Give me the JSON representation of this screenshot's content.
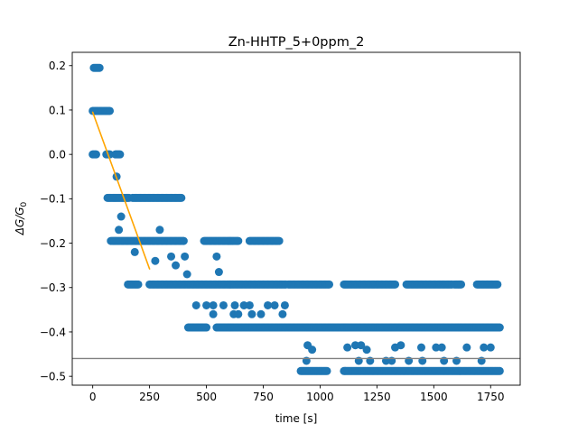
{
  "chart_data": {
    "type": "scatter",
    "title": "Zn-HHTP_5+0ppm_2",
    "xlabel": "time [s]",
    "ylabel_prefix": "ΔG/G",
    "ylabel_sub": "0",
    "xlim": [
      -90,
      1880
    ],
    "ylim": [
      -0.52,
      0.23
    ],
    "xticks": [
      0,
      250,
      500,
      750,
      1000,
      1250,
      1500,
      1750
    ],
    "xtick_labels": [
      "0",
      "250",
      "500",
      "750",
      "1000",
      "1250",
      "1500",
      "1750"
    ],
    "yticks": [
      0.2,
      0.1,
      0.0,
      -0.1,
      -0.2,
      -0.3,
      -0.4,
      -0.5
    ],
    "ytick_labels": [
      "0.2",
      "0.1",
      "0.0",
      "−0.1",
      "−0.2",
      "−0.3",
      "−0.4",
      "−0.5"
    ],
    "grid": false,
    "colors": {
      "points": "#1f77b4",
      "fit_line": "#ffa500",
      "ref_line": "#808080"
    },
    "fit_line": {
      "x": [
        0,
        250
      ],
      "y": [
        0.095,
        -0.258
      ]
    },
    "reference_line": {
      "y": -0.46
    },
    "series": [
      {
        "marker": "circle",
        "segments": [
          {
            "y": 0.195,
            "x0": 5,
            "x1": 30,
            "step": 5
          },
          {
            "y": 0.098,
            "x0": 0,
            "x1": 75,
            "step": 5
          },
          {
            "y": 0.0,
            "x0": 0,
            "x1": 15,
            "step": 5
          },
          {
            "y": 0.0,
            "x0": 60,
            "x1": 75,
            "step": 5
          },
          {
            "y": 0.0,
            "x0": 100,
            "x1": 120,
            "step": 5
          },
          {
            "y": -0.098,
            "x0": 65,
            "x1": 160,
            "step": 5
          },
          {
            "y": -0.098,
            "x0": 175,
            "x1": 250,
            "step": 5
          },
          {
            "y": -0.098,
            "x0": 255,
            "x1": 390,
            "step": 5
          },
          {
            "y": -0.195,
            "x0": 80,
            "x1": 400,
            "step": 5
          },
          {
            "y": -0.195,
            "x0": 490,
            "x1": 640,
            "step": 5
          },
          {
            "y": -0.195,
            "x0": 690,
            "x1": 820,
            "step": 5
          },
          {
            "y": -0.293,
            "x0": 155,
            "x1": 200,
            "step": 5
          },
          {
            "y": -0.293,
            "x0": 250,
            "x1": 850,
            "step": 5
          },
          {
            "y": -0.293,
            "x0": 860,
            "x1": 1040,
            "step": 5
          },
          {
            "y": -0.293,
            "x0": 1105,
            "x1": 1330,
            "step": 5
          },
          {
            "y": -0.293,
            "x0": 1380,
            "x1": 1580,
            "step": 5
          },
          {
            "y": -0.293,
            "x0": 1590,
            "x1": 1620,
            "step": 5
          },
          {
            "y": -0.293,
            "x0": 1690,
            "x1": 1780,
            "step": 5
          },
          {
            "y": -0.39,
            "x0": 420,
            "x1": 500,
            "step": 5
          },
          {
            "y": -0.39,
            "x0": 545,
            "x1": 1790,
            "step": 5
          },
          {
            "y": -0.488,
            "x0": 915,
            "x1": 1030,
            "step": 5
          },
          {
            "y": -0.488,
            "x0": 1105,
            "x1": 1790,
            "step": 5
          }
        ],
        "points": [
          [
            105,
            -0.05
          ],
          [
            125,
            -0.14
          ],
          [
            115,
            -0.17
          ],
          [
            185,
            -0.22
          ],
          [
            295,
            -0.17
          ],
          [
            275,
            -0.24
          ],
          [
            345,
            -0.23
          ],
          [
            365,
            -0.25
          ],
          [
            405,
            -0.23
          ],
          [
            415,
            -0.27
          ],
          [
            545,
            -0.23
          ],
          [
            555,
            -0.265
          ],
          [
            455,
            -0.34
          ],
          [
            500,
            -0.34
          ],
          [
            530,
            -0.34
          ],
          [
            575,
            -0.34
          ],
          [
            625,
            -0.34
          ],
          [
            665,
            -0.34
          ],
          [
            690,
            -0.34
          ],
          [
            770,
            -0.34
          ],
          [
            800,
            -0.34
          ],
          [
            845,
            -0.34
          ],
          [
            530,
            -0.36
          ],
          [
            620,
            -0.36
          ],
          [
            640,
            -0.36
          ],
          [
            700,
            -0.36
          ],
          [
            740,
            -0.36
          ],
          [
            835,
            -0.36
          ],
          [
            945,
            -0.43
          ],
          [
            965,
            -0.44
          ],
          [
            1120,
            -0.435
          ],
          [
            1155,
            -0.43
          ],
          [
            1180,
            -0.43
          ],
          [
            1205,
            -0.44
          ],
          [
            1330,
            -0.435
          ],
          [
            1355,
            -0.43
          ],
          [
            1445,
            -0.435
          ],
          [
            1510,
            -0.435
          ],
          [
            1535,
            -0.435
          ],
          [
            1645,
            -0.435
          ],
          [
            1720,
            -0.435
          ],
          [
            1750,
            -0.435
          ],
          [
            940,
            -0.465
          ],
          [
            1170,
            -0.465
          ],
          [
            1220,
            -0.465
          ],
          [
            1290,
            -0.465
          ],
          [
            1315,
            -0.465
          ],
          [
            1390,
            -0.465
          ],
          [
            1450,
            -0.465
          ],
          [
            1545,
            -0.465
          ],
          [
            1600,
            -0.465
          ],
          [
            1710,
            -0.465
          ]
        ]
      }
    ]
  }
}
